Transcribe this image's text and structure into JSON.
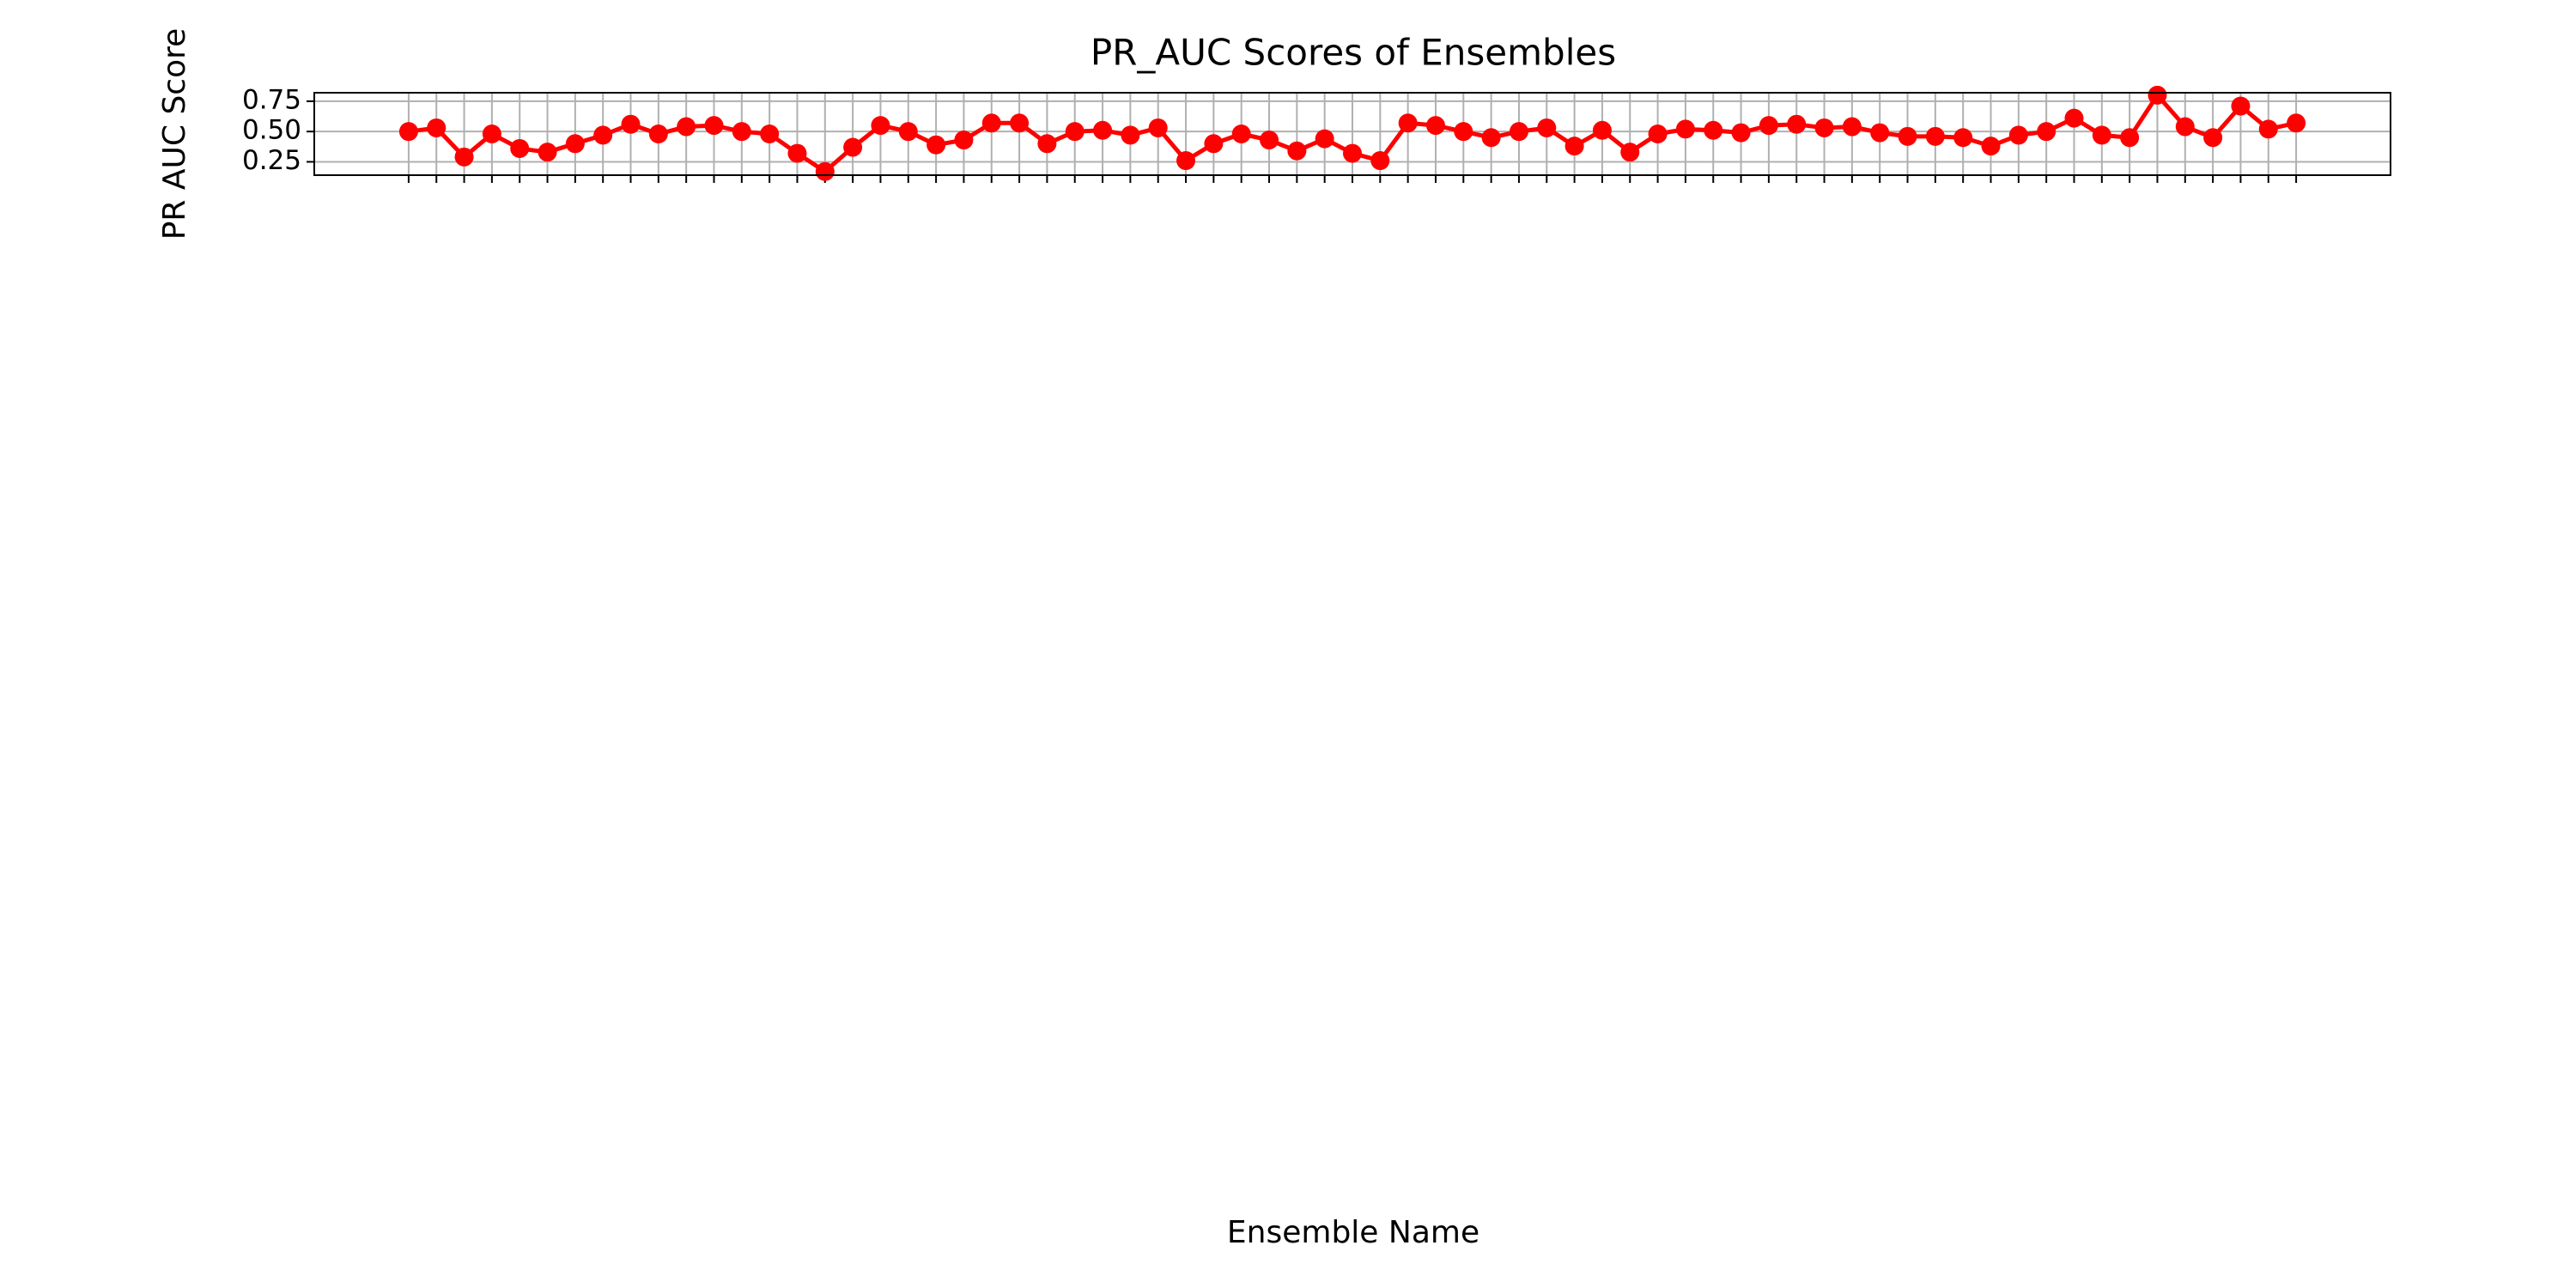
{
  "chart_data": {
    "type": "line",
    "title": "PR_AUC Scores of Ensembles",
    "x_label": "Ensemble Name",
    "y_label": "PR AUC Score",
    "categories": [
      null,
      null,
      null,
      null,
      null,
      null,
      null,
      null,
      null,
      null,
      null,
      null,
      null,
      null,
      null,
      null,
      null,
      null,
      null,
      null,
      null,
      null,
      null,
      null,
      null,
      null,
      null,
      null,
      null,
      null,
      null,
      null,
      null,
      null,
      null,
      null,
      null,
      null,
      null,
      null,
      null,
      null,
      null,
      null,
      null,
      null,
      null,
      null,
      null,
      null,
      null,
      null,
      null,
      null,
      null,
      null,
      null,
      null,
      null,
      null,
      null,
      null,
      null,
      null,
      null,
      null,
      null,
      null,
      null
    ],
    "series": [
      {
        "name": "PR AUC Score",
        "color": "#ff0000",
        "values": [
          0.5,
          0.53,
          0.29,
          0.48,
          0.36,
          0.33,
          0.4,
          0.47,
          0.56,
          0.48,
          0.54,
          0.55,
          0.5,
          0.48,
          0.32,
          0.17,
          0.37,
          0.55,
          0.5,
          0.39,
          0.43,
          0.57,
          0.57,
          0.4,
          0.5,
          0.51,
          0.47,
          0.53,
          0.26,
          0.4,
          0.48,
          0.43,
          0.34,
          0.44,
          0.32,
          0.26,
          0.57,
          0.55,
          0.5,
          0.45,
          0.5,
          0.53,
          0.38,
          0.51,
          0.33,
          0.48,
          0.52,
          0.51,
          0.49,
          0.55,
          0.56,
          0.53,
          0.54,
          0.49,
          0.46,
          0.46,
          0.45,
          0.38,
          0.47,
          0.5,
          0.61,
          0.47,
          0.45,
          0.8,
          0.54,
          0.45,
          0.71,
          0.52,
          0.57
        ]
      }
    ],
    "ylim": [
      0.14,
      0.82
    ],
    "yticks": [
      {
        "value": 0.25,
        "label": "0.25"
      },
      {
        "value": 0.5,
        "label": "0.50"
      },
      {
        "value": 0.75,
        "label": "0.75"
      }
    ],
    "grid": true
  }
}
